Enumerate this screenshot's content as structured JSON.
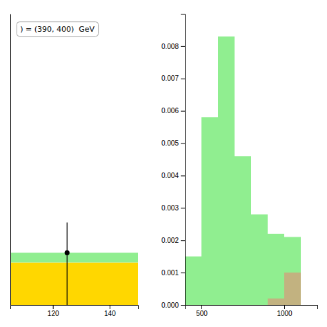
{
  "chart_data": [
    {
      "type": "scatter",
      "annotation": ") = (390, 400)  GeV",
      "x": [
        125
      ],
      "values": [
        0.00043
      ],
      "error_low": [
        0.00043
      ],
      "error_high": [
        0.00025
      ],
      "color": "#000000",
      "marker": "circle",
      "bands": [
        {
          "value": 0.00035,
          "color": "#FFD700"
        },
        {
          "value": 8e-05,
          "color": "#90EE90"
        }
      ],
      "xlim": [
        105,
        150
      ],
      "xticks": [
        120,
        140
      ],
      "ylim": [
        0,
        0.0024
      ],
      "tick_labels": "x"
    },
    {
      "type": "histogram",
      "bins": [
        400,
        500,
        600,
        700,
        800,
        900,
        1000,
        1100,
        1200
      ],
      "series": [
        {
          "color": "#90EE90",
          "values": [
            0.0015,
            0.0058,
            0.0083,
            0.0046,
            0.0028,
            0.0022,
            0.0021,
            0.0
          ]
        },
        {
          "color": "#C2B280",
          "values": [
            0.0,
            0.0,
            0.0,
            0.0,
            0.0,
            0.0002,
            0.001,
            0.0
          ]
        }
      ],
      "xlim": [
        400,
        1200
      ],
      "xticks": [
        500,
        1000
      ],
      "ylim": [
        0,
        0.009
      ],
      "yticks": [
        {
          "value": 0,
          "label": "0.000"
        },
        0.001,
        0.002,
        0.003,
        0.004,
        0.005,
        0.006,
        0.007,
        0.008
      ]
    }
  ]
}
